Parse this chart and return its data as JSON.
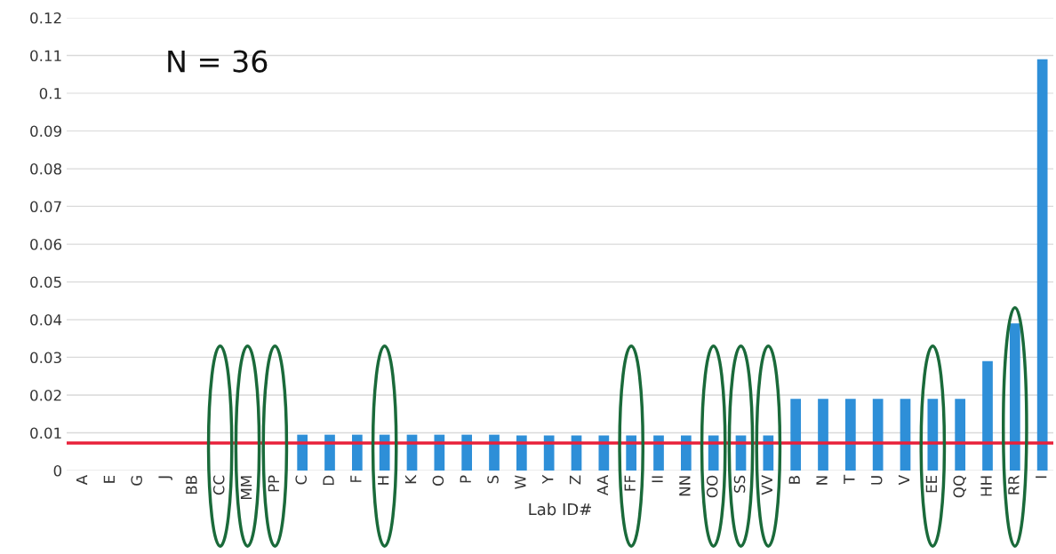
{
  "chart_data": {
    "type": "bar",
    "xlabel": "Lab ID#",
    "categories": [
      "A",
      "E",
      "G",
      "J",
      "BB",
      "CC",
      "MM",
      "PP",
      "C",
      "D",
      "F",
      "H",
      "K",
      "O",
      "P",
      "S",
      "W",
      "Y",
      "Z",
      "AA",
      "FF",
      "II",
      "NN",
      "OO",
      "SS",
      "VV",
      "B",
      "N",
      "T",
      "U",
      "V",
      "EE",
      "QQ",
      "HH",
      "RR",
      "I"
    ],
    "values": [
      0,
      0,
      0,
      0,
      0,
      0,
      0,
      0,
      0.0095,
      0.0095,
      0.0095,
      0.0095,
      0.0095,
      0.0095,
      0.0095,
      0.0095,
      0.0093,
      0.0093,
      0.0093,
      0.0093,
      0.0093,
      0.0093,
      0.0093,
      0.0093,
      0.0093,
      0.0093,
      0.019,
      0.019,
      0.019,
      0.019,
      0.019,
      0.019,
      0.019,
      0.029,
      0.039,
      0.109
    ],
    "color": "#2e8fd8",
    "ylim": [
      0,
      0.12
    ],
    "yticks": [
      {
        "value": 0,
        "label": "0"
      },
      {
        "value": 0.01,
        "label": "0.01"
      },
      {
        "value": 0.02,
        "label": "0.02"
      },
      {
        "value": 0.03,
        "label": "0.03"
      },
      {
        "value": 0.04,
        "label": "0.04"
      },
      {
        "value": 0.05,
        "label": "0.05"
      },
      {
        "value": 0.06,
        "label": "0.06"
      },
      {
        "value": 0.07,
        "label": "0.07"
      },
      {
        "value": 0.08,
        "label": "0.08"
      },
      {
        "value": 0.09,
        "label": "0.09"
      },
      {
        "value": 0.1,
        "label": "0.1"
      },
      {
        "value": 0.11,
        "label": "0.11"
      },
      {
        "value": 0.12,
        "label": "0.12"
      }
    ],
    "grid": "y",
    "ref_lines": [
      {
        "axis": "y",
        "value": 0.0073,
        "color": "#e8203a"
      }
    ],
    "annotations": [
      "N = 36"
    ]
  }
}
